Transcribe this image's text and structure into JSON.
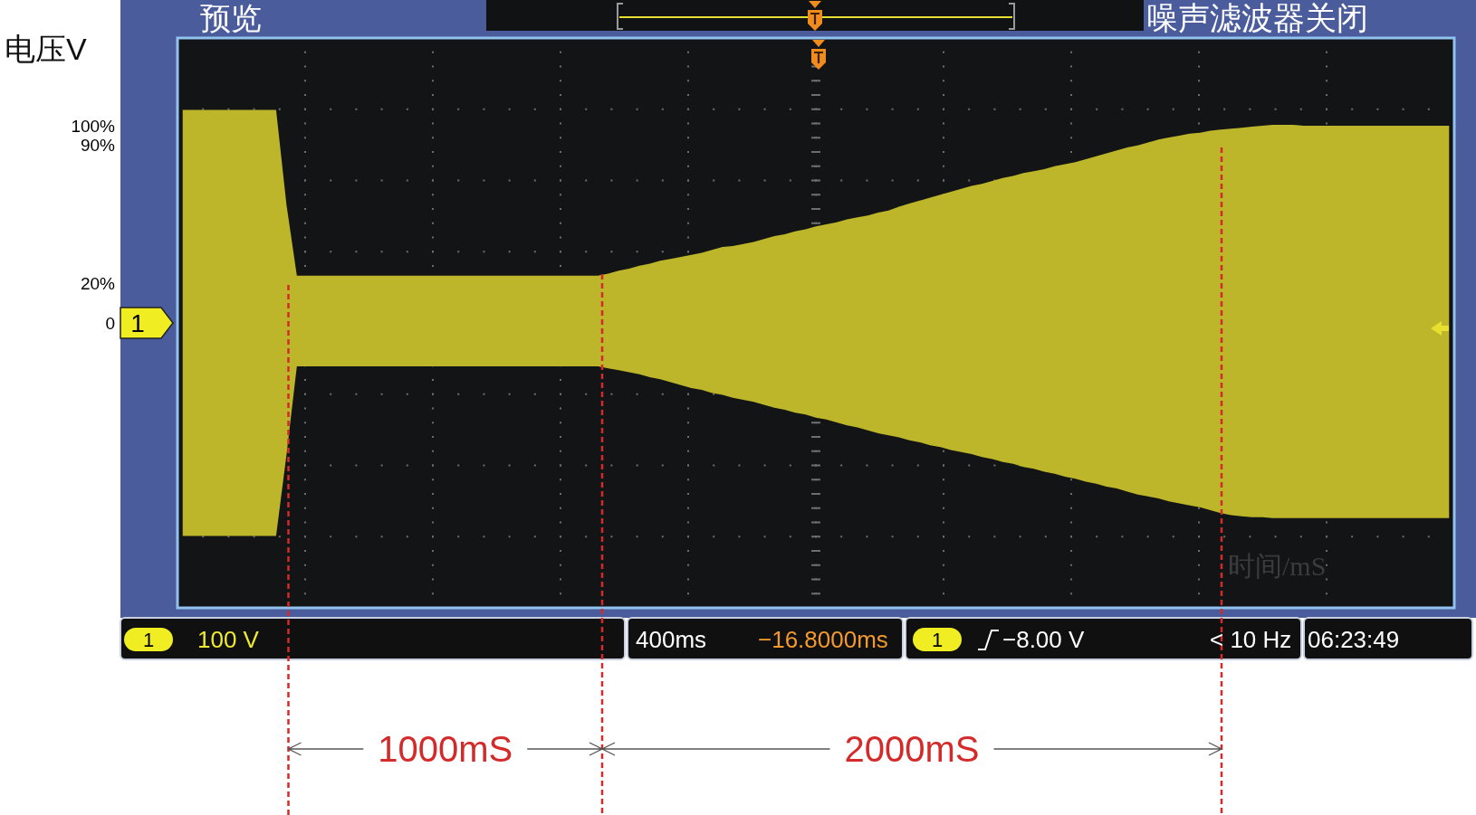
{
  "chart_data": {
    "type": "area",
    "xlabel": "时间/mS",
    "ylabel": "电压V",
    "categories": [
      null,
      null,
      null,
      null,
      null,
      null,
      null,
      null,
      null,
      null,
      null,
      null,
      null,
      null,
      null,
      null,
      null,
      null,
      null,
      null,
      null,
      null,
      null,
      null,
      null,
      null,
      null,
      null,
      null,
      null,
      null,
      null,
      null,
      null,
      null,
      null,
      null,
      null,
      null,
      null,
      null,
      null,
      null,
      null,
      null,
      null,
      null,
      null,
      null,
      null,
      null,
      null,
      null,
      null,
      null,
      null,
      null,
      null,
      null,
      null,
      null,
      null,
      null,
      null,
      null,
      null,
      null,
      null,
      null,
      null,
      null,
      null,
      null,
      null,
      null,
      null,
      null,
      null,
      null,
      null,
      null,
      null,
      null,
      null,
      null,
      null,
      null,
      null,
      null,
      null,
      null,
      null,
      null,
      null,
      null,
      null,
      null,
      null,
      null,
      null,
      null,
      null,
      null,
      null,
      null,
      null,
      null,
      null,
      null,
      null,
      null,
      null,
      null,
      null,
      null,
      null,
      null,
      null,
      null,
      null,
      null,
      null,
      null
    ],
    "ylim": [
      -144.5,
      144.5
    ],
    "yticks": [
      {
        "value": 0,
        "label": "0"
      },
      {
        "value": 20,
        "label": "20%"
      },
      {
        "value": 90,
        "label": "90%"
      },
      {
        "value": 100,
        "label": "100%"
      }
    ],
    "tick_labels": "y",
    "grid": true,
    "series": [
      {
        "color": "#bdb52a",
        "values": [
          108,
          108,
          108,
          108,
          108,
          108,
          108,
          108,
          108,
          108,
          60,
          24,
          24,
          24,
          24,
          24,
          24,
          24,
          24,
          24,
          24,
          24,
          24,
          24,
          24,
          24,
          24,
          24,
          24,
          24,
          24,
          24,
          24,
          24,
          24,
          24,
          24,
          24,
          24,
          24,
          24,
          25,
          26.5,
          27.5,
          29,
          30,
          31.5,
          32.5,
          33.5,
          34.5,
          35.5,
          37,
          38.5,
          39,
          40,
          41,
          42.5,
          44,
          45,
          46.5,
          47.5,
          49,
          50,
          51,
          52.5,
          53.5,
          54.5,
          56,
          57,
          59,
          60.5,
          62,
          63.5,
          65,
          66.5,
          68,
          69.5,
          70.5,
          72,
          73.5,
          74.5,
          76,
          77,
          78,
          79.5,
          80.5,
          81.5,
          83,
          84.5,
          86,
          87.5,
          89,
          90,
          91.5,
          93,
          94,
          95,
          96,
          96.5,
          97.5,
          98,
          98.5,
          99,
          99.5,
          100,
          100.5,
          100.5,
          100.5,
          100,
          100,
          100,
          100,
          100,
          100,
          100,
          100,
          100,
          100,
          100,
          100,
          100,
          100,
          100
        ]
      },
      {
        "color": "#bdb52a",
        "values": [
          -108,
          -108,
          -108,
          -108,
          -108,
          -108,
          -108,
          -108,
          -108,
          -108,
          -67,
          -22,
          -22,
          -22,
          -22,
          -22,
          -22,
          -22,
          -22,
          -22,
          -22,
          -22,
          -22,
          -22,
          -22,
          -22,
          -22,
          -22,
          -22,
          -22,
          -22,
          -22,
          -22,
          -22,
          -22,
          -22,
          -22,
          -22,
          -22,
          -22,
          -22,
          -23,
          -24,
          -25,
          -26,
          -27.5,
          -28.5,
          -30,
          -31.5,
          -33,
          -34,
          -35.5,
          -36.5,
          -38,
          -39,
          -40,
          -41.5,
          -43,
          -44,
          -45.5,
          -46.5,
          -48,
          -49,
          -50.5,
          -52,
          -53,
          -54.5,
          -56,
          -57,
          -58,
          -59.5,
          -60.5,
          -62,
          -63,
          -64.5,
          -65.5,
          -66.5,
          -68,
          -69,
          -70.5,
          -71.5,
          -73,
          -74,
          -75.5,
          -76.5,
          -78,
          -79,
          -80.5,
          -81.5,
          -83,
          -84,
          -85.5,
          -87,
          -88,
          -89,
          -90.5,
          -91.5,
          -92.5,
          -93.5,
          -95,
          -96.5,
          -97.5,
          -98,
          -98.5,
          -98.5,
          -99,
          -99,
          -99,
          -99,
          -99,
          -99,
          -99,
          -99,
          -99,
          -99,
          -99,
          -99,
          -99,
          -99,
          -99,
          -99,
          -99,
          -99
        ]
      }
    ],
    "annotations": [
      "1000mS",
      "2000mS",
      "预览",
      "噪声滤波器关闭",
      "1",
      "1",
      "100 V",
      "400ms",
      "−16.8000ms",
      "1",
      "−8.00 V",
      "< 10 Hz",
      "06:23:49"
    ]
  }
}
